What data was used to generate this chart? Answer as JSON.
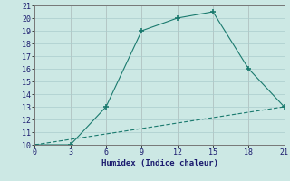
{
  "xlabel": "Humidex (Indice chaleur)",
  "line1_x": [
    0,
    3,
    6,
    9,
    12,
    15,
    18,
    21
  ],
  "line1_y": [
    10,
    10,
    13,
    19,
    20,
    20.5,
    16,
    13
  ],
  "line2_x": [
    0,
    21
  ],
  "line2_y": [
    10,
    13
  ],
  "line_color": "#1a7a6e",
  "bg_color": "#cce8e4",
  "grid_color_major": "#b0d4cf",
  "grid_color_minor": "#ddeeed",
  "xlim": [
    0,
    21
  ],
  "ylim": [
    10,
    21
  ],
  "xticks": [
    0,
    3,
    6,
    9,
    12,
    15,
    18,
    21
  ],
  "yticks": [
    10,
    11,
    12,
    13,
    14,
    15,
    16,
    17,
    18,
    19,
    20,
    21
  ],
  "marker": "+"
}
